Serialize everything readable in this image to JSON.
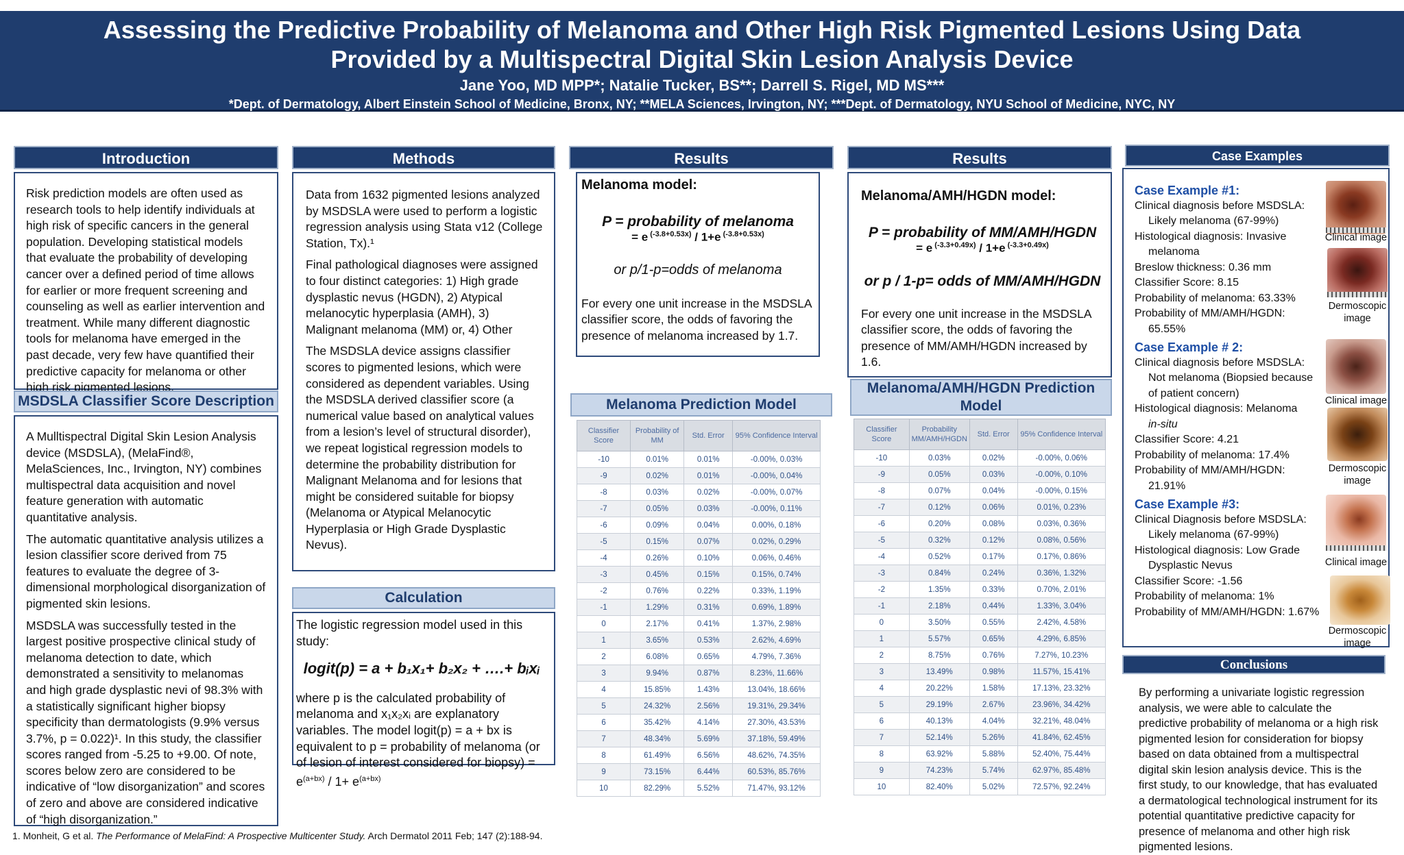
{
  "header": {
    "title_line1": "Assessing the Predictive Probability of Melanoma and Other High Risk Pigmented Lesions Using Data",
    "title_line2": "Provided by a Multispectral Digital Skin Lesion Analysis Device",
    "authors": "Jane Yoo, MD MPP*; Natalie Tucker, BS**; Darrell S. Rigel, MD MS***",
    "affiliations": "*Dept. of Dermatology, Albert Einstein School of Medicine, Bronx, NY; **MELA Sciences, Irvington, NY; ***Dept. of Dermatology, NYU School of Medicine, NYC, NY"
  },
  "introduction": {
    "heading": "Introduction",
    "text": "Risk prediction models are often used as research tools to help identify individuals at high risk of specific cancers in the general population. Developing statistical models that evaluate the probability of developing cancer over a defined period of time allows for earlier or more frequent screening and counseling as well as earlier intervention and treatment.  While many different diagnostic tools for melanoma have emerged in the past decade, very few have quantified their predictive capacity for melanoma or other high risk pigmented lesions."
  },
  "classifier": {
    "heading": "MSDSLA Classifier Score Description",
    "p1": "A Mulltispectral Digital Skin Lesion Analysis device (MSDSLA), (MelaFind®, MelaSciences, Inc., Irvington, NY)  combines multispectral data acquisition and novel feature generation with automatic quantitative analysis.",
    "p2": "The automatic quantitative analysis utilizes a lesion classifier score derived from 75 features to evaluate the degree of 3-dimensional morphological disorganization of pigmented skin lesions.",
    "p3": "MSDSLA was successfully tested in the largest positive prospective clinical study of melanoma detection to date, which demonstrated a sensitivity to melanomas and high grade dysplastic nevi of 98.3% with a statistically significant higher biopsy specificity than dermatologists (9.9% versus 3.7%, p = 0.022)¹. In this study, the classifier scores ranged from -5.25 to +9.00. Of note, scores below zero are considered to be indicative of “low disorganization” and scores of zero and above are considered indicative of “high disorganization.”"
  },
  "methods": {
    "heading": "Methods",
    "p1": "Data from 1632 pigmented lesions analyzed by MSDSLA were used to perform a logistic regression analysis using Stata v12 (College Station, Tx).¹",
    "p2": "Final pathological diagnoses were assigned to four distinct categories: 1) High grade dysplastic nevus (HGDN), 2) Atypical melanocytic hyperplasia (AMH), 3) Malignant melanoma (MM) or, 4) Other",
    "p3": "The MSDSLA device assigns classifier scores to pigmented lesions, which were considered as dependent variables.  Using the MSDSLA derived classifier score (a numerical value based on analytical values from a lesion’s level of structural disorder), we repeat logistical regression models to determine the probability distribution for Malignant Melanoma and for lesions that might be considered suitable for biopsy (Melanoma or Atypical Melanocytic Hyperplasia or High Grade Dysplastic Nevus)."
  },
  "calculation": {
    "heading": "Calculation",
    "intro": "The logistic regression model used in this study:",
    "formula": "logit(p) = a + b₁x₁+ b₂x₂ + ….+ bᵢxᵢ",
    "text1": "where p is the calculated probability of melanoma and x₁x₂xᵢ are explanatory variables.  The model logit(p) = a + bx is equivalent to p = probability of melanoma (or of lesion of interest considered for biopsy) = e",
    "exp1": "(a+bx)",
    "text2": " / 1+ e",
    "exp2": "(a+bx)"
  },
  "results1": {
    "heading": "Results",
    "model_title": "Melanoma model:",
    "eq_line1": "P = probability of melanoma",
    "eq_line2_a": "= e",
    "eq_exp1": " (-3.8+0.53x)",
    "eq_line2_b": " /  1+e",
    "eq_exp2": " (-3.8+0.53x)",
    "odds": "or p/1-p=odds of melanoma",
    "text": "For every one unit increase in the MSDSLA classifier score, the odds of favoring the presence of melanoma increased by 1.7."
  },
  "results2": {
    "heading": "Results",
    "model_title": "Melanoma/AMH/HGDN model:",
    "eq_line1": "P = probability of MM/AMH/HGDN",
    "eq_line2_a": "= e",
    "eq_exp1": " (-3.3+0.49x)",
    "eq_line2_b": " / 1+e",
    "eq_exp2": " (-3.3+0.49x)",
    "odds": "or p / 1-p= odds of MM/AMH/HGDN",
    "text": "For every one unit increase in the MSDSLA classifier score, the odds of favoring the presence of MM/AMH/HGDN increased by 1.6."
  },
  "table1": {
    "heading": "Melanoma Prediction Model",
    "headers": [
      "Classifier Score",
      "Probability of MM",
      "Std. Error",
      "95% Confidence Interval"
    ],
    "rows": [
      [
        "-10",
        "0.01%",
        "0.01%",
        "-0.00%, 0.03%"
      ],
      [
        "-9",
        "0.02%",
        "0.01%",
        "-0.00%, 0.04%"
      ],
      [
        "-8",
        "0.03%",
        "0.02%",
        "-0.00%, 0.07%"
      ],
      [
        "-7",
        "0.05%",
        "0.03%",
        "-0.00%, 0.11%"
      ],
      [
        "-6",
        "0.09%",
        "0.04%",
        "0.00%, 0.18%"
      ],
      [
        "-5",
        "0.15%",
        "0.07%",
        "0.02%, 0.29%"
      ],
      [
        "-4",
        "0.26%",
        "0.10%",
        "0.06%, 0.46%"
      ],
      [
        "-3",
        "0.45%",
        "0.15%",
        "0.15%, 0.74%"
      ],
      [
        "-2",
        "0.76%",
        "0.22%",
        "0.33%, 1.19%"
      ],
      [
        "-1",
        "1.29%",
        "0.31%",
        "0.69%, 1.89%"
      ],
      [
        "0",
        "2.17%",
        "0.41%",
        "1.37%, 2.98%"
      ],
      [
        "1",
        "3.65%",
        "0.53%",
        "2.62%, 4.69%"
      ],
      [
        "2",
        "6.08%",
        "0.65%",
        "4.79%, 7.36%"
      ],
      [
        "3",
        "9.94%",
        "0.87%",
        "8.23%, 11.66%"
      ],
      [
        "4",
        "15.85%",
        "1.43%",
        "13.04%, 18.66%"
      ],
      [
        "5",
        "24.32%",
        "2.56%",
        "19.31%, 29.34%"
      ],
      [
        "6",
        "35.42%",
        "4.14%",
        "27.30%, 43.53%"
      ],
      [
        "7",
        "48.34%",
        "5.69%",
        "37.18%, 59.49%"
      ],
      [
        "8",
        "61.49%",
        "6.56%",
        "48.62%, 74.35%"
      ],
      [
        "9",
        "73.15%",
        "6.44%",
        "60.53%, 85.76%"
      ],
      [
        "10",
        "82.29%",
        "5.52%",
        "71.47%, 93.12%"
      ]
    ]
  },
  "table2": {
    "heading": "Melanoma/AMH/HGDN Prediction Model",
    "headers": [
      "Classifier Score",
      "Probability MM/AMH/HGDN",
      "Std. Error",
      "95% Confidence Interval"
    ],
    "rows": [
      [
        "-10",
        "0.03%",
        "0.02%",
        "-0.00%, 0.06%"
      ],
      [
        "-9",
        "0.05%",
        "0.03%",
        "-0.00%, 0.10%"
      ],
      [
        "-8",
        "0.07%",
        "0.04%",
        "-0.00%, 0.15%"
      ],
      [
        "-7",
        "0.12%",
        "0.06%",
        "0.01%, 0.23%"
      ],
      [
        "-6",
        "0.20%",
        "0.08%",
        "0.03%, 0.36%"
      ],
      [
        "-5",
        "0.32%",
        "0.12%",
        "0.08%, 0.56%"
      ],
      [
        "-4",
        "0.52%",
        "0.17%",
        "0.17%, 0.86%"
      ],
      [
        "-3",
        "0.84%",
        "0.24%",
        "0.36%, 1.32%"
      ],
      [
        "-2",
        "1.35%",
        "0.33%",
        "0.70%, 2.01%"
      ],
      [
        "-1",
        "2.18%",
        "0.44%",
        "1.33%, 3.04%"
      ],
      [
        "0",
        "3.50%",
        "0.55%",
        "2.42%, 4.58%"
      ],
      [
        "1",
        "5.57%",
        "0.65%",
        "4.29%, 6.85%"
      ],
      [
        "2",
        "8.75%",
        "0.76%",
        "7.27%, 10.23%"
      ],
      [
        "3",
        "13.49%",
        "0.98%",
        "11.57%, 15.41%"
      ],
      [
        "4",
        "20.22%",
        "1.58%",
        "17.13%, 23.32%"
      ],
      [
        "5",
        "29.19%",
        "2.67%",
        "23.96%, 34.42%"
      ],
      [
        "6",
        "40.13%",
        "4.04%",
        "32.21%, 48.04%"
      ],
      [
        "7",
        "52.14%",
        "5.26%",
        "41.84%, 62.45%"
      ],
      [
        "8",
        "63.92%",
        "5.88%",
        "52.40%, 75.44%"
      ],
      [
        "9",
        "74.23%",
        "5.74%",
        "62.97%, 85.48%"
      ],
      [
        "10",
        "82.40%",
        "5.02%",
        "72.57%, 92.24%"
      ]
    ]
  },
  "cases": {
    "heading": "Case Examples",
    "c1_title": "Case Example #1:",
    "c1_l1": "Clinical diagnosis before MSDSLA:",
    "c1_l2": "Likely melanoma (67-99%)",
    "c1_l3": "Histological diagnosis:  Invasive",
    "c1_l4": "melanoma",
    "c1_l5": "Breslow thickness:  0.36 mm",
    "c1_l6": "Classifier Score:  8.15",
    "c1_l7": "Probability of melanoma:   63.33%",
    "c1_l8": "Probability of MM/AMH/HGDN:",
    "c1_l9": "65.55%",
    "c2_title": "Case Example # 2:",
    "c2_l1": "Clinical diagnosis before MSDSLA:",
    "c2_l2": "Not melanoma (Biopsied because",
    "c2_l3": "of patient  concern)",
    "c2_l4": "Histological diagnosis:  Melanoma",
    "c2_l5": "in-situ",
    "c2_l6": "Classifier Score: 4.21",
    "c2_l7": "Probability of melanoma: 17.4%",
    "c2_l8": "Probability of MM/AMH/HGDN:",
    "c2_l9": "21.91%",
    "c3_title": "Case Example #3:",
    "c3_l1": "Clinical Diagnosis before MSDSLA:",
    "c3_l2": "Likely melanoma (67-99%)",
    "c3_l3": "Histological diagnosis:  Low Grade",
    "c3_l4": "Dysplastic  Nevus",
    "c3_l5": "Classifier Score:  -1.56",
    "c3_l6": "Probability of melanoma: 1%",
    "c3_l7": "Probability of MM/AMH/HGDN: 1.67%",
    "cap_clinical": "Clinical image",
    "cap_dermo": "Dermoscopic image"
  },
  "conclusions": {
    "heading": "Conclusions",
    "text": "By performing a univariate logistic regression analysis, we were able to calculate the predictive probability of melanoma or a high risk pigmented lesion for consideration for biopsy based on data obtained from a multispectral digital skin lesion analysis device.  This is the first study, to our knowledge, that has evaluated a dermatological technological instrument for its potential quantitative predictive capacity for presence of melanoma and other high risk pigmented lesions."
  },
  "footnote": {
    "prefix": "1. Monheit, G et al. ",
    "title": "The Performance of MelaFind: A Prospective Multicenter Study.",
    "suffix": " Arch Dermatol 2011 Feb; 147 (2):188-94."
  }
}
